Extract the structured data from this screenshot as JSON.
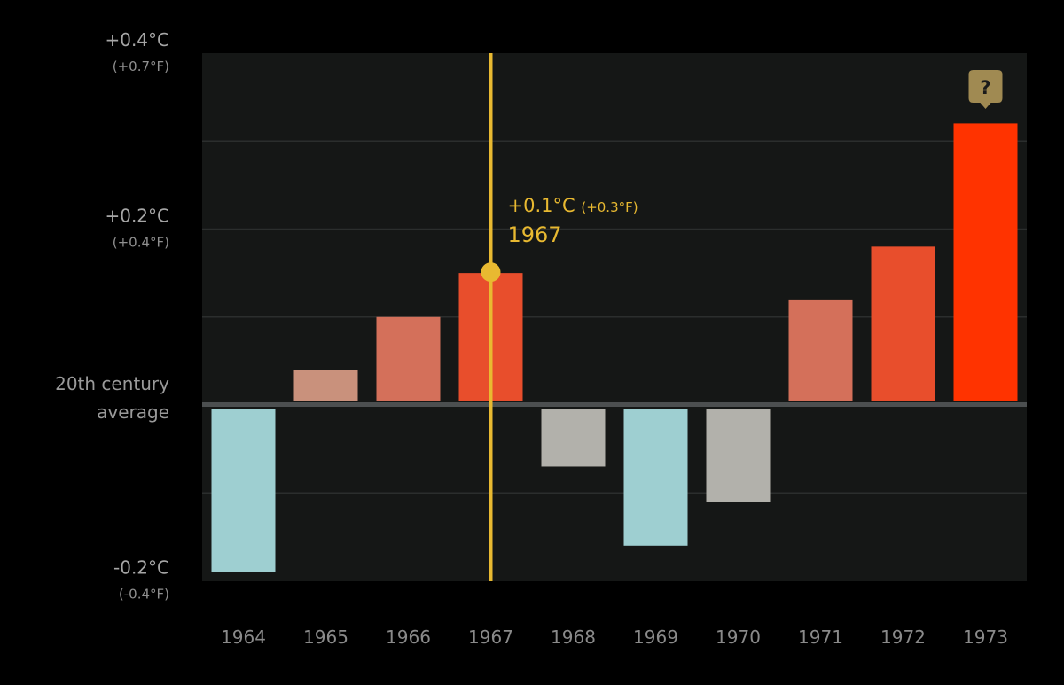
{
  "chart_data": {
    "type": "bar",
    "categories": [
      "1964",
      "1965",
      "1966",
      "1967",
      "1968",
      "1969",
      "1970",
      "1971",
      "1972",
      "1973"
    ],
    "values": [
      -0.19,
      0.04,
      0.1,
      0.15,
      -0.07,
      -0.16,
      -0.11,
      0.12,
      0.18,
      0.32
    ],
    "ylim": [
      -0.2,
      0.4
    ],
    "yticks": [
      {
        "value": 0.4,
        "label_c": "+0.4°C",
        "label_f": "(+0.7°F)"
      },
      {
        "value": 0.2,
        "label_c": "+0.2°C",
        "label_f": "(+0.4°F)"
      },
      {
        "value": -0.2,
        "label_c": "-0.2°C",
        "label_f": "(-0.4°F)"
      }
    ],
    "baseline_label": [
      "20th century",
      "average"
    ],
    "gridlines": [
      0.3,
      0.2,
      0.1,
      -0.1
    ],
    "selected": {
      "category": "1967",
      "label_c": "+0.1°C",
      "label_f": "(+0.3°F)",
      "label_year": "1967"
    },
    "question_marker": {
      "category": "1973",
      "symbol": "?"
    },
    "grid": true
  },
  "colors": {
    "bar_1964": "#9ecfd1",
    "bar_1965": "#c9917c",
    "bar_1966": "#d4705a",
    "bar_1967": "#e84e2c",
    "bar_1968": "#b2b1ab",
    "bar_1969": "#9ecfd1",
    "bar_1970": "#b2b1ab",
    "bar_1971": "#d4705a",
    "bar_1972": "#e84e2c",
    "bar_1973": "#ff3300",
    "accent": "#e8b931",
    "plot_bg": "#151716",
    "baseline": "#4c4f50",
    "grid": "#2b2e2d"
  }
}
